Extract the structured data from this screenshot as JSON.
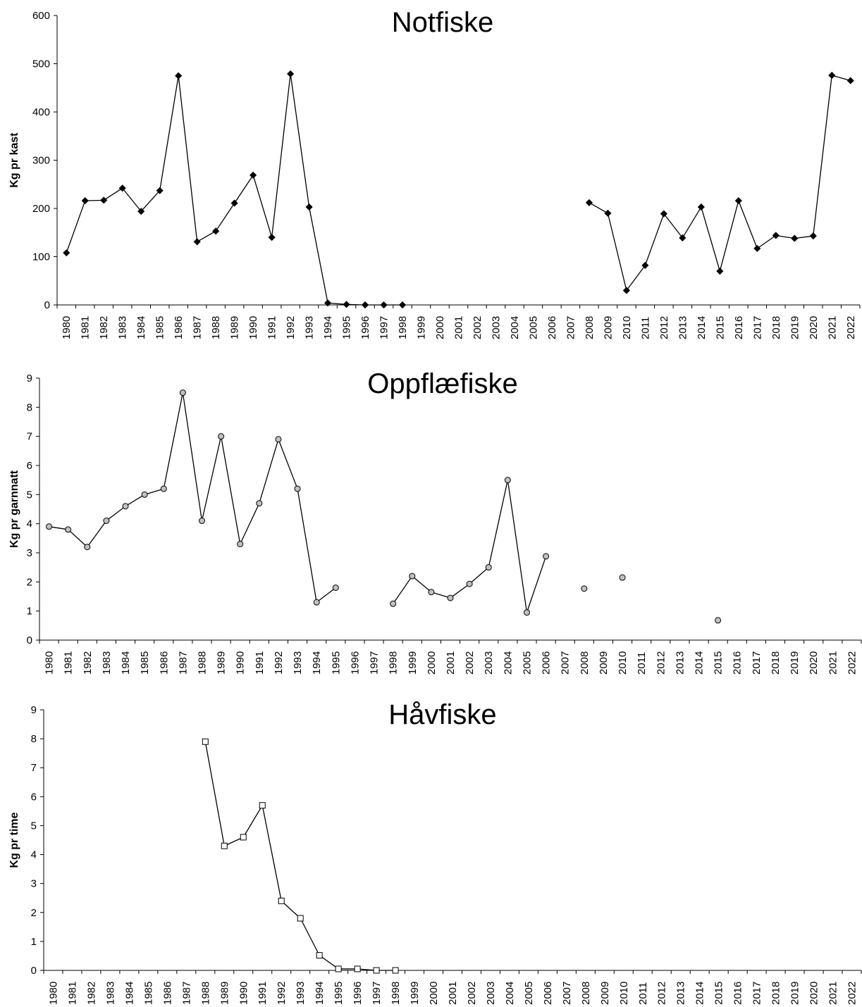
{
  "years": [
    "1980",
    "1981",
    "1982",
    "1983",
    "1984",
    "1985",
    "1986",
    "1987",
    "1988",
    "1989",
    "1990",
    "1991",
    "1992",
    "1993",
    "1994",
    "1995",
    "1996",
    "1997",
    "1998",
    "1999",
    "2000",
    "2001",
    "2002",
    "2003",
    "2004",
    "2005",
    "2006",
    "2007",
    "2008",
    "2009",
    "2010",
    "2011",
    "2012",
    "2013",
    "2014",
    "2015",
    "2016",
    "2017",
    "2018",
    "2019",
    "2020",
    "2021",
    "2022"
  ],
  "chart_data": [
    {
      "type": "line",
      "title": "Notfiske",
      "ylabel": "Kg pr kast",
      "ylim": [
        0,
        600
      ],
      "yticks": [
        0,
        100,
        200,
        300,
        400,
        500,
        600
      ],
      "marker": "diamond",
      "marker_color": "#000000",
      "line_color": "#000000",
      "values": [
        108,
        216,
        217,
        242,
        194,
        237,
        475,
        131,
        153,
        211,
        269,
        140,
        479,
        203,
        4,
        1,
        0,
        0,
        0,
        null,
        null,
        null,
        null,
        null,
        null,
        null,
        null,
        null,
        212,
        190,
        30,
        82,
        189,
        139,
        203,
        70,
        216,
        117,
        144,
        138,
        143,
        476,
        465
      ]
    },
    {
      "type": "line",
      "title": "Oppflæfiske",
      "ylabel": "Kg pr garnnatt",
      "ylim": [
        0,
        9
      ],
      "yticks": [
        0,
        1,
        2,
        3,
        4,
        5,
        6,
        7,
        8,
        9
      ],
      "marker": "circle",
      "marker_color": "#c0c0c0",
      "line_color": "#000000",
      "values": [
        3.9,
        3.8,
        3.2,
        4.1,
        4.6,
        5.0,
        5.2,
        8.5,
        4.1,
        7.0,
        3.3,
        4.7,
        6.9,
        5.2,
        1.3,
        1.8,
        null,
        null,
        1.25,
        2.2,
        1.65,
        1.45,
        1.93,
        2.5,
        5.5,
        0.95,
        2.88,
        null,
        1.77,
        null,
        2.15,
        null,
        null,
        null,
        null,
        0.68,
        null,
        null,
        null,
        null,
        null,
        null,
        null
      ]
    },
    {
      "type": "line",
      "title": "Håvfiske",
      "ylabel": "Kg pr time",
      "ylim": [
        0,
        9
      ],
      "yticks": [
        0,
        1,
        2,
        3,
        4,
        5,
        6,
        7,
        8,
        9
      ],
      "marker": "square",
      "marker_color": "#ffffff",
      "line_color": "#000000",
      "values": [
        null,
        null,
        null,
        null,
        null,
        null,
        null,
        null,
        7.9,
        4.3,
        4.6,
        5.7,
        2.4,
        1.8,
        0.52,
        0.05,
        0.05,
        0.0,
        0.0,
        null,
        null,
        null,
        null,
        null,
        null,
        null,
        null,
        null,
        null,
        null,
        null,
        null,
        null,
        null,
        null,
        null,
        null,
        null,
        null,
        null,
        null,
        null,
        null
      ]
    }
  ]
}
